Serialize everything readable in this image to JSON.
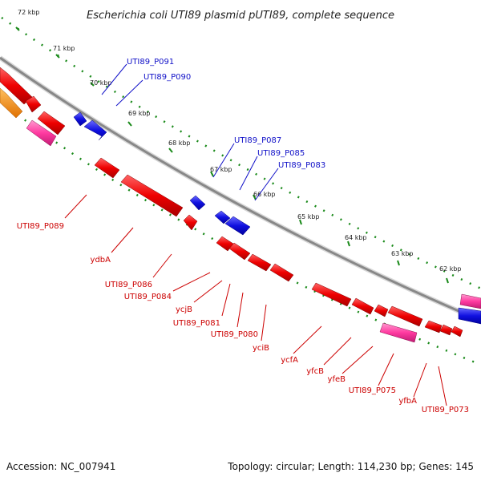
{
  "title": "Escherichia coli UTI89 plasmid pUTI89, complete sequence",
  "footer": {
    "accession": "Accession: NC_007941",
    "summary": "Topology: circular; Length: 114,230 bp; Genes: 145"
  },
  "ticks": [
    "72 kbp",
    "71 kbp",
    "70 kbp",
    "69 kbp",
    "68 kbp",
    "67 kbp",
    "66 kbp",
    "65 kbp",
    "64 kbp",
    "63 kbp",
    "62 kbp"
  ],
  "blue_labels": [
    "UTI89_P091",
    "UTI89_P090",
    "UTI89_P087",
    "UTI89_P085",
    "UTI89_P083"
  ],
  "red_labels": [
    "UTI89_P089",
    "ydbA",
    "UTI89_P086",
    "UTI89_P084",
    "ycjB",
    "UTI89_P081",
    "UTI89_P080",
    "yciB",
    "ycfA",
    "yfcB",
    "yfeB",
    "UTI89_P075",
    "yfbA",
    "UTI89_P073"
  ],
  "colors": {
    "forward": "#1010e0",
    "reverse": "#ee0000",
    "pink": "#ff3aa0",
    "orange": "#ff8800",
    "backbone": "#888888",
    "tick_dots": "#1a8a1a"
  }
}
